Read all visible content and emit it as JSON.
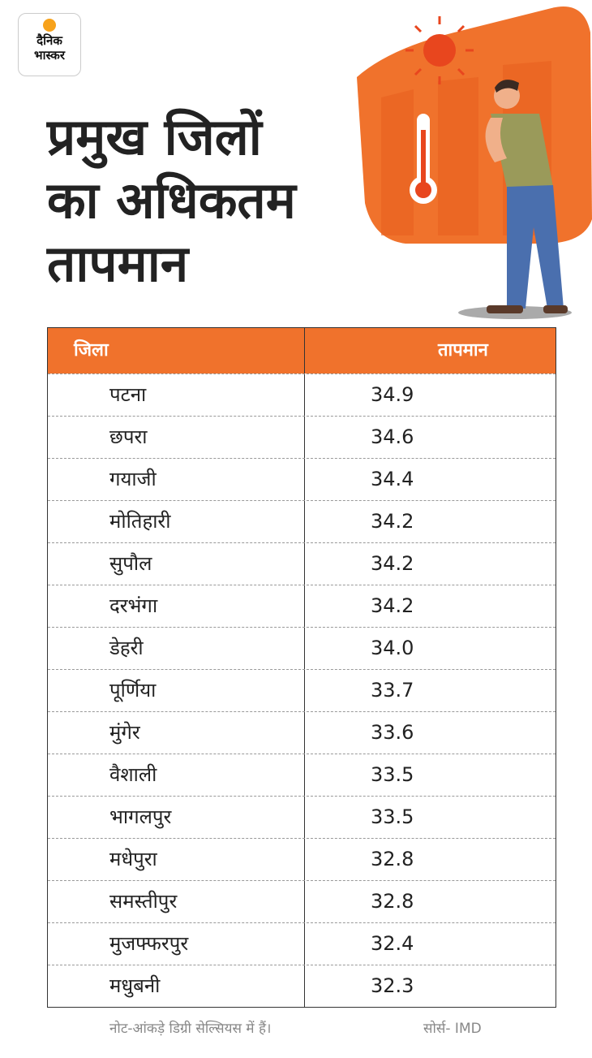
{
  "logo": {
    "line1": "दैनिक",
    "line2": "भास्कर"
  },
  "title": {
    "lines": [
      "प्रमुख जिलों",
      "का अधिकतम",
      "तापमान"
    ]
  },
  "table": {
    "header": [
      "जिला",
      "तापमान"
    ],
    "rows": [
      [
        "पटना",
        "34.9"
      ],
      [
        "छपरा",
        "34.6"
      ],
      [
        "गयाजी",
        "34.4"
      ],
      [
        "मोतिहारी",
        "34.2"
      ],
      [
        "सुपौल",
        "34.2"
      ],
      [
        "दरभंगा",
        "34.2"
      ],
      [
        "डेहरी",
        "34.0"
      ],
      [
        "पूर्णिया",
        "33.7"
      ],
      [
        "मुंगेर",
        "33.6"
      ],
      [
        "वैशाली",
        "33.5"
      ],
      [
        "भागलपुर",
        "33.5"
      ],
      [
        "मधेपुरा",
        "32.8"
      ],
      [
        "समस्तीपुर",
        "32.8"
      ],
      [
        "मुजफ्फरपुर",
        "32.4"
      ],
      [
        "मधुबनी",
        "32.3"
      ]
    ]
  },
  "footer": {
    "note": "नोट-आंकड़े डिग्री सेल्सियस में हैं।",
    "source": "सोर्स- IMD"
  }
}
